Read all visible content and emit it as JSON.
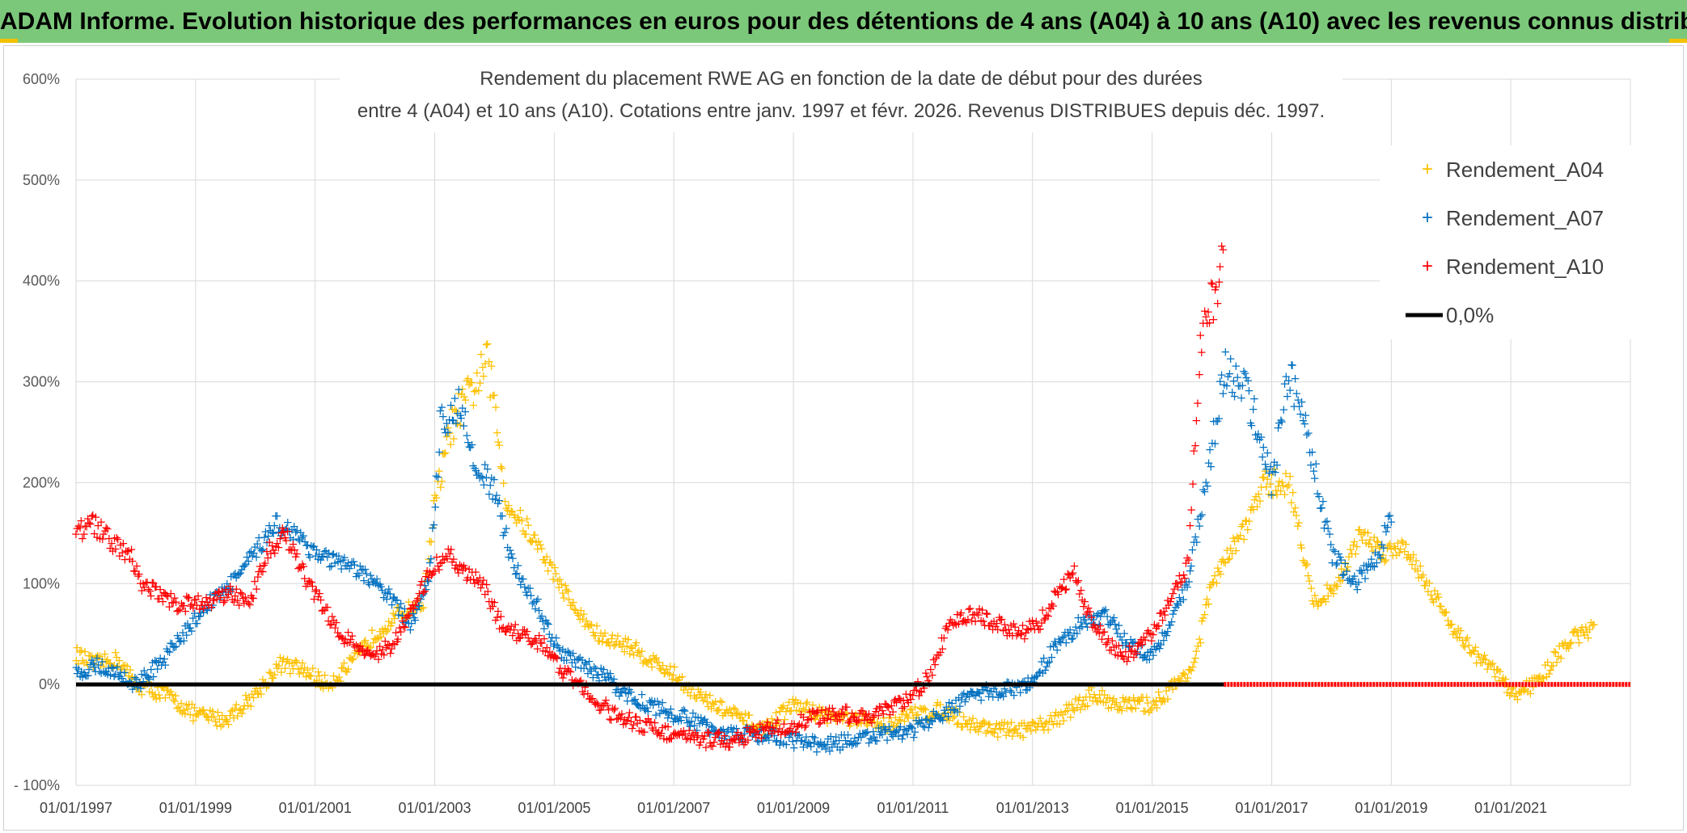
{
  "banner": {
    "title": "ADAM Informe. Evolution historique des performances en euros pour des détentions de 4 ans (A04) à 10 ans (A10) avec les revenus connus distribués"
  },
  "colors": {
    "A04": "#ffc000",
    "A07": "#0070c0",
    "A10": "#ff0000",
    "zero": "#000000",
    "grid": "#d9d9d9",
    "banner": "#7cc87a"
  },
  "chart_data": {
    "type": "scatter",
    "title_line1": "Rendement du placement RWE AG en fonction de la date de début pour des durées",
    "title_line2": "entre 4 (A04) et 10 ans (A10). Cotations entre janv. 1997 et févr. 2026. Revenus DISTRIBUES depuis déc. 1997.",
    "xlabel": "",
    "ylabel": "",
    "xlim": [
      1997.0,
      2023.0
    ],
    "ylim": [
      -100,
      600
    ],
    "yticks": [
      -100,
      0,
      100,
      200,
      300,
      400,
      500,
      600
    ],
    "ytick_labels": [
      "- 100%",
      "0%",
      "100%",
      "200%",
      "300%",
      "400%",
      "500%",
      "600%"
    ],
    "xtick_labels": [
      "01/01/1997",
      "01/01/1999",
      "01/01/2001",
      "01/01/2003",
      "01/01/2005",
      "01/01/2007",
      "01/01/2009",
      "01/01/2011",
      "01/01/2013",
      "01/01/2015",
      "01/01/2017",
      "01/01/2019",
      "01/01/2021"
    ],
    "legend_position": "top-right",
    "series": [
      {
        "name": "Rendement_A04",
        "x": [
          1997.0,
          1997.3,
          1997.7,
          1998.0,
          1998.5,
          1999.0,
          1999.5,
          2000.0,
          2000.4,
          2000.8,
          2001.2,
          2001.6,
          2002.0,
          2002.4,
          2002.8,
          2003.0,
          2003.3,
          2003.7,
          2003.9,
          2004.2,
          2004.6,
          2005.0,
          2005.4,
          2005.8,
          2006.2,
          2006.6,
          2007.0,
          2007.5,
          2008.0,
          2008.5,
          2009.0,
          2009.5,
          2010.0,
          2010.5,
          2011.0,
          2011.5,
          2012.0,
          2012.5,
          2013.0,
          2013.5,
          2014.0,
          2014.5,
          2015.0,
          2015.4,
          2015.7,
          2016.0,
          2016.5,
          2016.9,
          2017.3,
          2017.7,
          2018.1,
          2018.5,
          2018.9,
          2019.2,
          2019.6,
          2020.0,
          2020.4,
          2020.8,
          2021.0,
          2021.4,
          2021.8,
          2022.0,
          2022.4
        ],
        "values": [
          30,
          20,
          25,
          0,
          -10,
          -30,
          -35,
          -10,
          20,
          15,
          0,
          20,
          50,
          70,
          80,
          180,
          260,
          300,
          320,
          180,
          150,
          110,
          70,
          45,
          40,
          25,
          10,
          -15,
          -30,
          -45,
          -20,
          -30,
          -35,
          -40,
          -30,
          -25,
          -40,
          -45,
          -45,
          -30,
          -10,
          -20,
          -20,
          0,
          20,
          100,
          150,
          200,
          200,
          80,
          100,
          150,
          130,
          140,
          100,
          60,
          30,
          10,
          -10,
          0,
          30,
          45,
          55
        ]
      },
      {
        "name": "Rendement_A07",
        "x": [
          1997.0,
          1997.3,
          1997.7,
          1998.0,
          1998.4,
          1998.8,
          1999.2,
          1999.6,
          2000.0,
          2000.3,
          2000.7,
          2001.0,
          2001.4,
          2001.8,
          2002.2,
          2002.6,
          2002.9,
          2003.1,
          2003.4,
          2003.7,
          2004.0,
          2004.3,
          2004.7,
          2005.0,
          2005.4,
          2005.8,
          2006.2,
          2006.6,
          2007.0,
          2007.5,
          2008.0,
          2008.5,
          2009.0,
          2009.5,
          2010.0,
          2010.5,
          2011.0,
          2011.5,
          2012.0,
          2012.5,
          2013.0,
          2013.4,
          2013.8,
          2014.2,
          2014.6,
          2015.0,
          2015.3,
          2015.6,
          2015.9,
          2016.2,
          2016.5,
          2016.8,
          2017.0,
          2017.3,
          2017.6,
          2018.0,
          2018.4,
          2018.8,
          2019.0
        ],
        "values": [
          10,
          20,
          10,
          0,
          20,
          50,
          80,
          100,
          130,
          160,
          150,
          130,
          120,
          110,
          90,
          60,
          100,
          260,
          280,
          220,
          190,
          120,
          80,
          40,
          20,
          10,
          -10,
          -20,
          -30,
          -40,
          -50,
          -50,
          -55,
          -60,
          -55,
          -50,
          -45,
          -30,
          -10,
          -5,
          0,
          40,
          60,
          70,
          40,
          30,
          60,
          100,
          200,
          310,
          300,
          250,
          200,
          310,
          250,
          130,
          100,
          130,
          170
        ]
      },
      {
        "name": "Rendement_A10",
        "x": [
          1997.0,
          1997.3,
          1997.6,
          1997.9,
          1998.1,
          1998.4,
          1998.7,
          1999.0,
          1999.3,
          1999.6,
          1999.9,
          2000.2,
          2000.5,
          2000.8,
          2001.1,
          2001.4,
          2001.7,
          2002.0,
          2002.3,
          2002.6,
          2002.9,
          2003.2,
          2003.5,
          2003.8,
          2004.1,
          2004.4,
          2004.8,
          2005.2,
          2005.6,
          2006.0,
          2006.5,
          2007.0,
          2007.5,
          2008.0,
          2008.5,
          2009.0,
          2009.5,
          2010.0,
          2010.4,
          2010.8,
          2011.0,
          2011.3,
          2011.6,
          2012.0,
          2012.4,
          2012.8,
          2013.1,
          2013.4,
          2013.7,
          2014.0,
          2014.3,
          2014.6,
          2015.0,
          2015.3,
          2015.6,
          2015.8,
          2016.0,
          2016.2
        ],
        "values": [
          150,
          160,
          140,
          130,
          100,
          90,
          80,
          80,
          85,
          90,
          80,
          130,
          150,
          110,
          80,
          50,
          40,
          30,
          40,
          70,
          110,
          130,
          110,
          100,
          60,
          50,
          40,
          10,
          -10,
          -30,
          -40,
          -50,
          -55,
          -55,
          -45,
          -40,
          -30,
          -30,
          -30,
          -20,
          -10,
          10,
          60,
          70,
          60,
          50,
          60,
          90,
          110,
          60,
          40,
          30,
          50,
          80,
          120,
          330,
          380,
          420
        ]
      },
      {
        "name": "0,0%",
        "type": "line",
        "x": [
          1997.0,
          2016.2
        ],
        "values": [
          0,
          0
        ]
      }
    ]
  }
}
